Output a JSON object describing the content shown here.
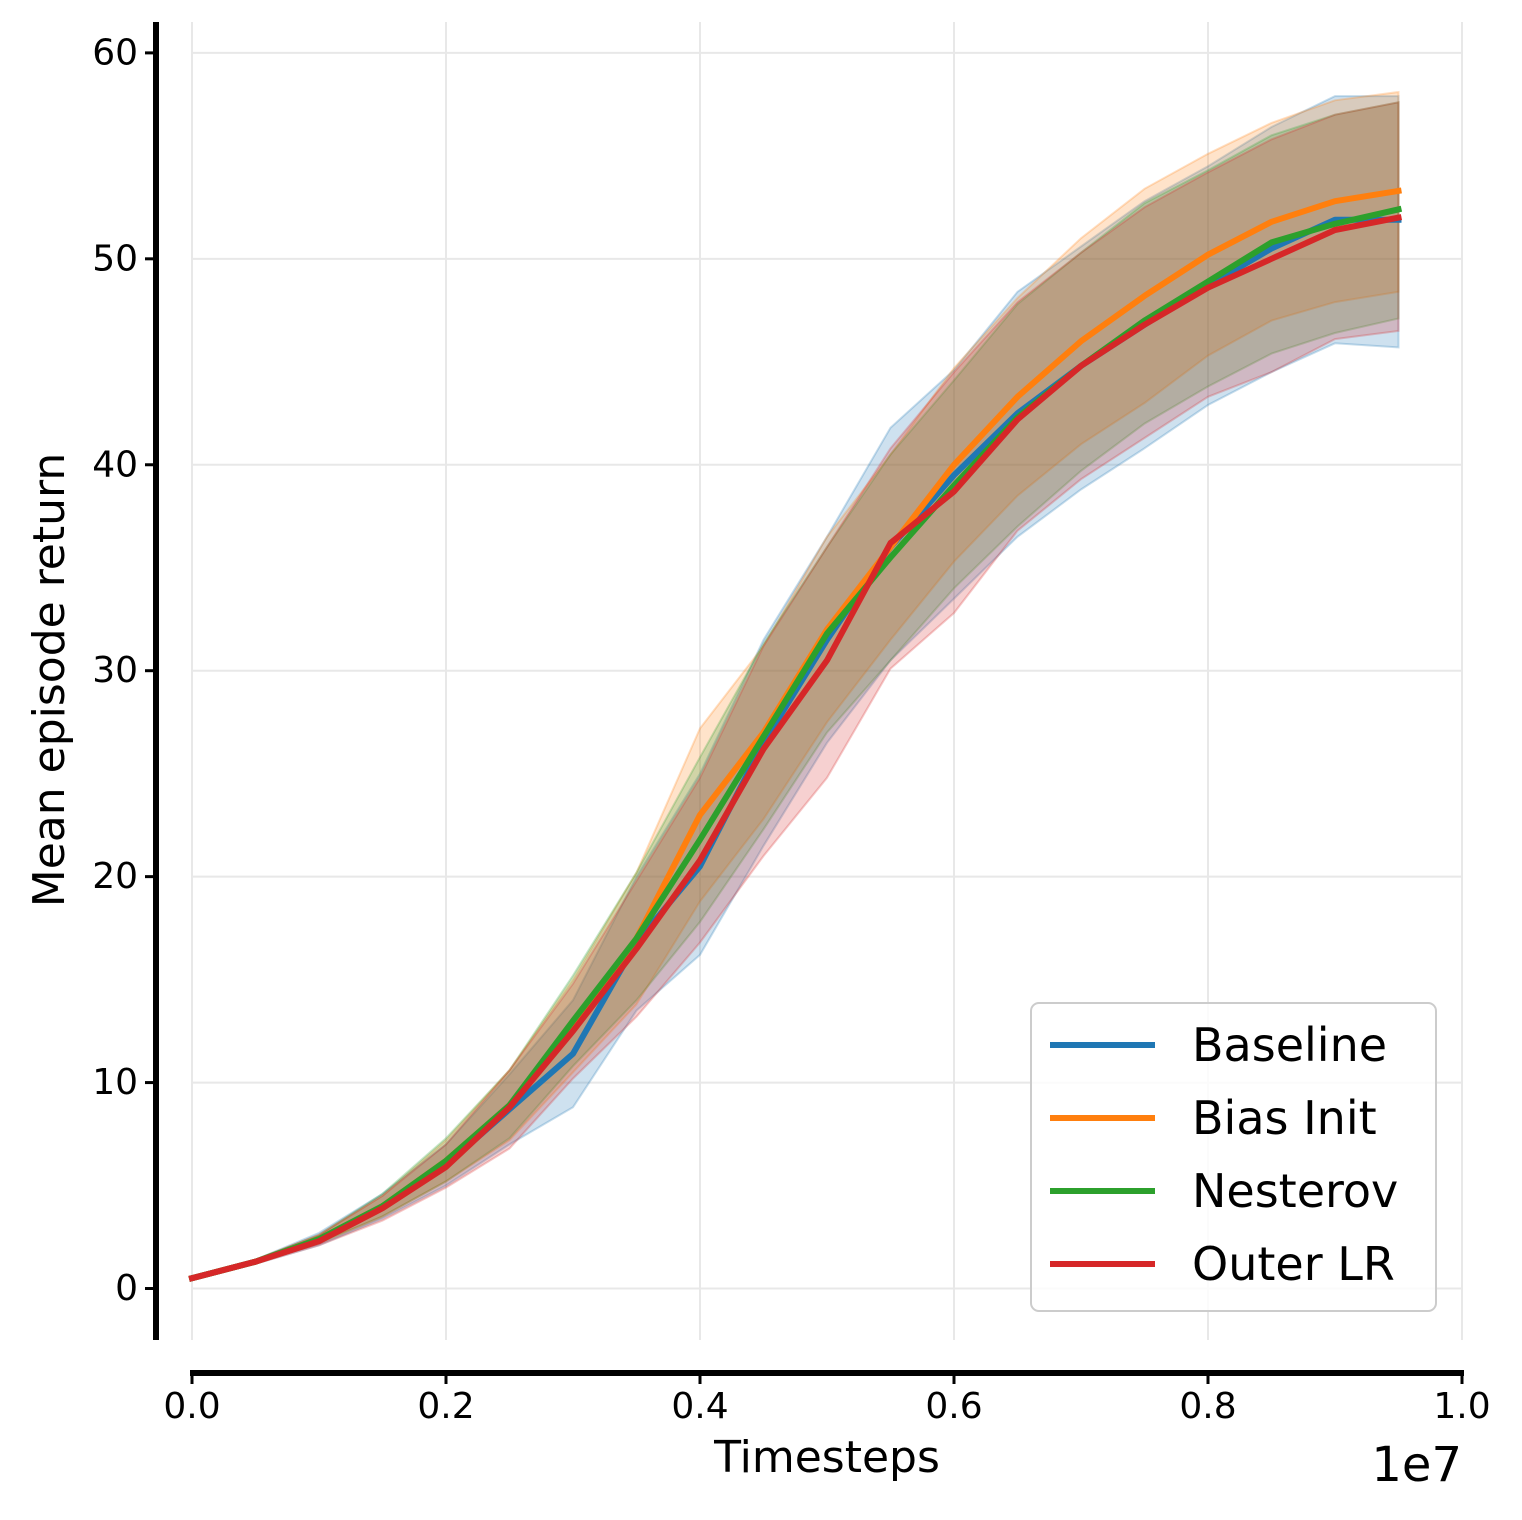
{
  "chart_data": {
    "type": "line",
    "xlabel": "Timesteps",
    "ylabel": "Mean episode return",
    "x_offset_label": "1e7",
    "xlim": [
      0.0,
      1.0
    ],
    "ylim": [
      -2.5,
      61.5
    ],
    "x_ticks": [
      0.0,
      0.2,
      0.4,
      0.6,
      0.8,
      1.0
    ],
    "x_tick_labels": [
      "0.0",
      "0.2",
      "0.4",
      "0.6",
      "0.8",
      "1.0"
    ],
    "y_ticks": [
      0,
      10,
      20,
      30,
      40,
      50,
      60
    ],
    "y_tick_labels": [
      "0",
      "10",
      "20",
      "30",
      "40",
      "50",
      "60"
    ],
    "grid": true,
    "legend_position": "bottom-right",
    "x": [
      0.0,
      0.05,
      0.1,
      0.15,
      0.2,
      0.25,
      0.3,
      0.35,
      0.4,
      0.45,
      0.5,
      0.55,
      0.6,
      0.65,
      0.7,
      0.75,
      0.8,
      0.85,
      0.9,
      0.95
    ],
    "series": [
      {
        "name": "Baseline",
        "color": "#1f77b4",
        "values": [
          0.5,
          1.3,
          2.4,
          4.0,
          6.0,
          8.7,
          11.4,
          16.8,
          20.5,
          26.5,
          31.5,
          36.0,
          39.5,
          42.5,
          44.8,
          46.8,
          48.7,
          50.5,
          51.9,
          51.9
        ],
        "lower": [
          0.5,
          1.2,
          2.1,
          3.4,
          5.0,
          7.0,
          8.8,
          13.5,
          16.2,
          21.5,
          26.5,
          30.5,
          33.5,
          36.5,
          38.8,
          40.8,
          42.9,
          44.5,
          45.9,
          45.7
        ],
        "upper": [
          0.5,
          1.4,
          2.7,
          4.6,
          7.0,
          10.4,
          14.0,
          20.0,
          25.0,
          31.5,
          36.5,
          41.8,
          44.6,
          48.4,
          50.6,
          52.8,
          54.5,
          56.4,
          57.9,
          57.9
        ]
      },
      {
        "name": "Bias Init",
        "color": "#ff7f0e",
        "values": [
          0.5,
          1.3,
          2.4,
          4.0,
          6.2,
          8.9,
          12.8,
          17.0,
          23.0,
          27.0,
          32.0,
          36.0,
          40.0,
          43.3,
          46.0,
          48.2,
          50.2,
          51.8,
          52.8,
          53.3
        ],
        "lower": [
          0.5,
          1.2,
          2.2,
          3.5,
          5.2,
          7.2,
          10.5,
          13.8,
          18.8,
          22.8,
          27.5,
          31.5,
          35.3,
          38.5,
          41.0,
          43.0,
          45.3,
          47.0,
          47.9,
          48.4
        ],
        "upper": [
          0.5,
          1.4,
          2.6,
          4.5,
          7.2,
          10.6,
          15.0,
          20.2,
          27.2,
          31.2,
          36.5,
          40.5,
          44.7,
          48.1,
          51.0,
          53.4,
          55.1,
          56.6,
          57.7,
          58.1
        ]
      },
      {
        "name": "Nesterov",
        "color": "#2ca02c",
        "values": [
          0.5,
          1.3,
          2.4,
          4.0,
          6.2,
          8.9,
          13.0,
          17.0,
          21.8,
          26.8,
          31.8,
          35.5,
          39.0,
          42.3,
          44.8,
          47.0,
          48.9,
          50.8,
          51.7,
          52.4
        ],
        "lower": [
          0.5,
          1.2,
          2.2,
          3.5,
          5.2,
          7.3,
          10.8,
          14.0,
          17.8,
          22.3,
          27.0,
          30.5,
          34.0,
          37.0,
          39.7,
          42.0,
          43.8,
          45.4,
          46.4,
          47.1
        ],
        "upper": [
          0.5,
          1.4,
          2.6,
          4.6,
          7.3,
          10.6,
          15.2,
          20.2,
          25.8,
          31.3,
          36.0,
          40.5,
          44.1,
          47.8,
          50.3,
          52.7,
          54.3,
          56.0,
          57.0,
          57.6
        ]
      },
      {
        "name": "Outer LR",
        "color": "#d62728",
        "values": [
          0.5,
          1.3,
          2.3,
          3.9,
          5.9,
          8.8,
          12.5,
          16.5,
          20.8,
          26.2,
          30.5,
          36.2,
          38.7,
          42.2,
          44.8,
          46.8,
          48.6,
          50.0,
          51.4,
          52.0
        ],
        "lower": [
          0.5,
          1.2,
          2.1,
          3.3,
          4.9,
          6.8,
          10.2,
          13.2,
          16.8,
          21.0,
          24.8,
          30.1,
          32.8,
          36.8,
          39.3,
          41.3,
          43.3,
          44.5,
          46.1,
          46.5
        ],
        "upper": [
          0.5,
          1.4,
          2.6,
          4.5,
          7.0,
          10.6,
          14.8,
          19.8,
          24.8,
          31.2,
          36.0,
          40.8,
          44.5,
          47.9,
          50.3,
          52.5,
          54.2,
          55.8,
          57.0,
          57.6
        ]
      }
    ]
  }
}
